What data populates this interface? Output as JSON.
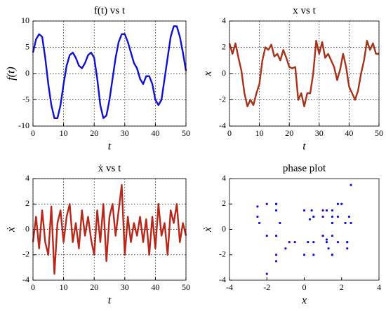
{
  "chart_data": [
    {
      "type": "line",
      "title": "f(t) vs t",
      "xlabel": "t",
      "ylabel": "f(t)",
      "color": "#1010d0",
      "grid": true,
      "xlim": [
        0,
        50
      ],
      "xticks": [
        0,
        10,
        20,
        30,
        40,
        50
      ],
      "ylim": [
        -10,
        10
      ],
      "yticks": [
        -10,
        -5,
        0,
        5,
        10
      ],
      "x": [
        0,
        1,
        2,
        3,
        4,
        5,
        6,
        7,
        8,
        9,
        10,
        11,
        12,
        13,
        14,
        15,
        16,
        17,
        18,
        19,
        20,
        21,
        22,
        23,
        24,
        25,
        26,
        27,
        28,
        29,
        30,
        31,
        32,
        33,
        34,
        35,
        36,
        37,
        38,
        39,
        40,
        41,
        42,
        43,
        44,
        45,
        46,
        47,
        48,
        49,
        50
      ],
      "values": [
        4,
        6.5,
        7.5,
        7,
        3,
        -2,
        -6,
        -8.5,
        -8.5,
        -6,
        -2,
        1.5,
        3.5,
        4,
        3,
        1.5,
        1,
        2,
        3.5,
        4,
        3,
        -1,
        -6,
        -8.5,
        -8,
        -5,
        -1,
        3,
        6,
        7.5,
        7.5,
        6,
        4,
        2,
        1,
        -1,
        -2,
        -0.5,
        -0.5,
        -2,
        -5,
        -6,
        -5,
        -1,
        3,
        7,
        9,
        9,
        7,
        4,
        0.5
      ]
    },
    {
      "type": "line",
      "title": "x vs t",
      "xlabel": "t",
      "ylabel": "x",
      "color": "#a83218",
      "grid": true,
      "xlim": [
        0,
        50
      ],
      "xticks": [
        0,
        10,
        20,
        30,
        40,
        50
      ],
      "ylim": [
        -4,
        4
      ],
      "yticks": [
        -4,
        -2,
        0,
        2,
        4
      ],
      "x": [
        0,
        1,
        2,
        3,
        4,
        5,
        6,
        7,
        8,
        9,
        10,
        11,
        12,
        13,
        14,
        15,
        16,
        17,
        18,
        19,
        20,
        21,
        22,
        23,
        24,
        25,
        26,
        27,
        28,
        29,
        30,
        31,
        32,
        33,
        34,
        35,
        36,
        37,
        38,
        39,
        40,
        41,
        42,
        43,
        44,
        45,
        46,
        47,
        48,
        49,
        50
      ],
      "values": [
        2.3,
        1.5,
        2.3,
        1.2,
        0.2,
        -1.5,
        -2.5,
        -2,
        -2.4,
        -1.5,
        -0.8,
        1,
        2,
        1.8,
        2.2,
        1.3,
        1.5,
        1,
        1.8,
        1.2,
        0.5,
        0.4,
        0.5,
        -2,
        -1.5,
        -2.5,
        -1.5,
        -1.5,
        0,
        2.5,
        1.5,
        2.4,
        1.2,
        1.5,
        1,
        0.5,
        -0.5,
        0.3,
        1.5,
        0.5,
        -1,
        -1.5,
        -2,
        -1.3,
        0,
        1,
        2.5,
        1.8,
        2.3,
        1.5,
        1.5
      ]
    },
    {
      "type": "line",
      "title": "ẋ vs t",
      "xlabel": "t",
      "ylabel": "ẋ",
      "color": "#b8281a",
      "grid": true,
      "xlim": [
        0,
        50
      ],
      "xticks": [
        0,
        10,
        20,
        30,
        40,
        50
      ],
      "ylim": [
        -4,
        4
      ],
      "yticks": [
        -4,
        -2,
        0,
        2,
        4
      ],
      "x": [
        0,
        1,
        2,
        3,
        4,
        5,
        6,
        7,
        8,
        9,
        10,
        11,
        12,
        13,
        14,
        15,
        16,
        17,
        18,
        19,
        20,
        21,
        22,
        23,
        24,
        25,
        26,
        27,
        28,
        29,
        30,
        31,
        32,
        33,
        34,
        35,
        36,
        37,
        38,
        39,
        40,
        41,
        42,
        43,
        44,
        45,
        46,
        47,
        48,
        49,
        50
      ],
      "values": [
        -1,
        1,
        -1.5,
        1.5,
        -1,
        -2,
        1.8,
        -3.5,
        0.5,
        1.5,
        -1,
        1,
        2,
        -1,
        0.5,
        -1.5,
        1.5,
        -0.5,
        1,
        -0.8,
        -2,
        1.5,
        -1,
        2,
        -2.5,
        1,
        2,
        -0.5,
        1.5,
        3.5,
        -2,
        1,
        -1,
        0.5,
        -0.5,
        1,
        -1,
        0.8,
        -2,
        1,
        -1.5,
        2,
        -0.5,
        0.5,
        -2,
        1.5,
        0.5,
        2,
        -1,
        0.5,
        -0.5
      ]
    },
    {
      "type": "scatter",
      "title": "phase plot",
      "xlabel": "x",
      "ylabel": "ẋ",
      "color": "#1010e0",
      "grid": false,
      "xlim": [
        -4,
        4
      ],
      "xticks": [
        -4,
        -2,
        0,
        2,
        4
      ],
      "ylim": [
        -4,
        4
      ],
      "yticks": [
        -4,
        -2,
        0,
        2,
        4
      ],
      "x": [
        2.3,
        1.5,
        2.3,
        1.2,
        0.2,
        -1.5,
        -2.5,
        -2,
        -2.4,
        -1.5,
        -0.8,
        1,
        2,
        1.8,
        2.2,
        1.3,
        1.5,
        1,
        1.8,
        1.2,
        0.5,
        0.4,
        0.5,
        -2,
        -1.5,
        -2.5,
        -1.5,
        -1.5,
        0,
        2.5,
        1.5,
        2.4,
        1.2,
        1.5,
        1,
        0.5,
        -0.5,
        0.3,
        1.5,
        0.5,
        -1,
        -1.5,
        -2,
        -1.3,
        0,
        1,
        2.5,
        1.8,
        2.3,
        1.5,
        1.5
      ],
      "values": [
        -1,
        1,
        -1.5,
        1.5,
        -1,
        -2,
        1.8,
        -3.5,
        0.5,
        1.5,
        -1,
        1,
        2,
        -1,
        0.5,
        -1.5,
        1.5,
        -0.5,
        1,
        -0.8,
        -2,
        1.5,
        -1,
        2,
        -2.5,
        1,
        2,
        -0.5,
        1.5,
        3.5,
        -2,
        1,
        -1,
        0.5,
        -0.5,
        1,
        -1,
        0.8,
        -2,
        1,
        -1.5,
        2,
        -0.5,
        0.5,
        -2,
        1.5,
        0.5,
        2,
        -1,
        0.5,
        -0.5
      ]
    }
  ]
}
